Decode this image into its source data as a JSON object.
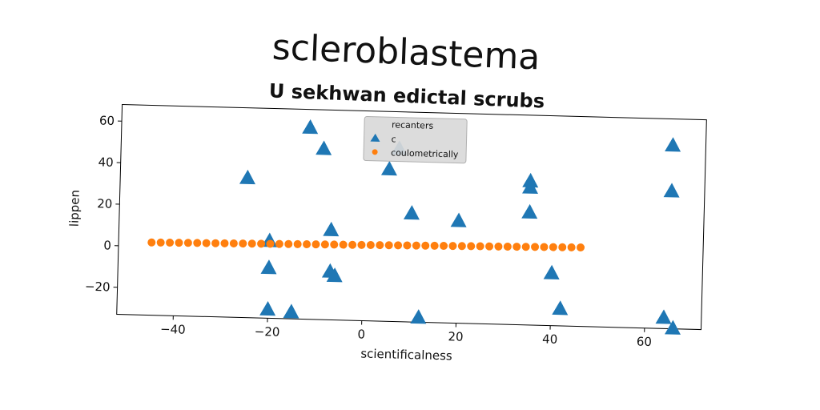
{
  "chart_data": {
    "type": "scatter",
    "title": "scleroblastema",
    "subtitle": "U sekhwan edictal scrubs",
    "xlabel": "scientificalness",
    "ylabel": "lippen",
    "xlim": [
      -52,
      72
    ],
    "ylim": [
      -33,
      68
    ],
    "x_ticks": [
      -40,
      -20,
      0,
      20,
      40,
      60
    ],
    "y_ticks": [
      -20,
      0,
      20,
      40,
      60
    ],
    "x_tick_labels": [
      "−40",
      "−20",
      "0",
      "20",
      "40",
      "60"
    ],
    "y_tick_labels": [
      "−20",
      "0",
      "20",
      "40",
      "60"
    ],
    "grid": false,
    "legend": {
      "title": "recanters",
      "placement": "top-center",
      "entries": [
        "c",
        "coulometrically"
      ]
    },
    "series": [
      {
        "name": "c",
        "marker": "triangle",
        "color": "#1f77b4",
        "points": [
          [
            -25,
            34
          ],
          [
            -12,
            59
          ],
          [
            -9,
            49
          ],
          [
            5,
            40
          ],
          [
            7,
            50
          ],
          [
            10,
            19
          ],
          [
            20,
            16
          ],
          [
            35,
            36
          ],
          [
            35,
            33
          ],
          [
            35,
            21
          ],
          [
            -20,
            4
          ],
          [
            -7,
            10
          ],
          [
            -20,
            -9
          ],
          [
            -7,
            -10
          ],
          [
            -6,
            -12
          ],
          [
            40,
            -8
          ],
          [
            42,
            -25
          ],
          [
            -20,
            -29
          ],
          [
            -15,
            -30
          ],
          [
            12,
            -31
          ],
          [
            64,
            -28
          ],
          [
            66,
            -33
          ],
          [
            65,
            55
          ],
          [
            65,
            33
          ]
        ]
      },
      {
        "name": "coulometrically",
        "marker": "circle",
        "color": "#ff7f0e",
        "x_start": -45,
        "x_end": 46,
        "y_start": 2,
        "y_end": 5,
        "count": 48
      }
    ]
  }
}
